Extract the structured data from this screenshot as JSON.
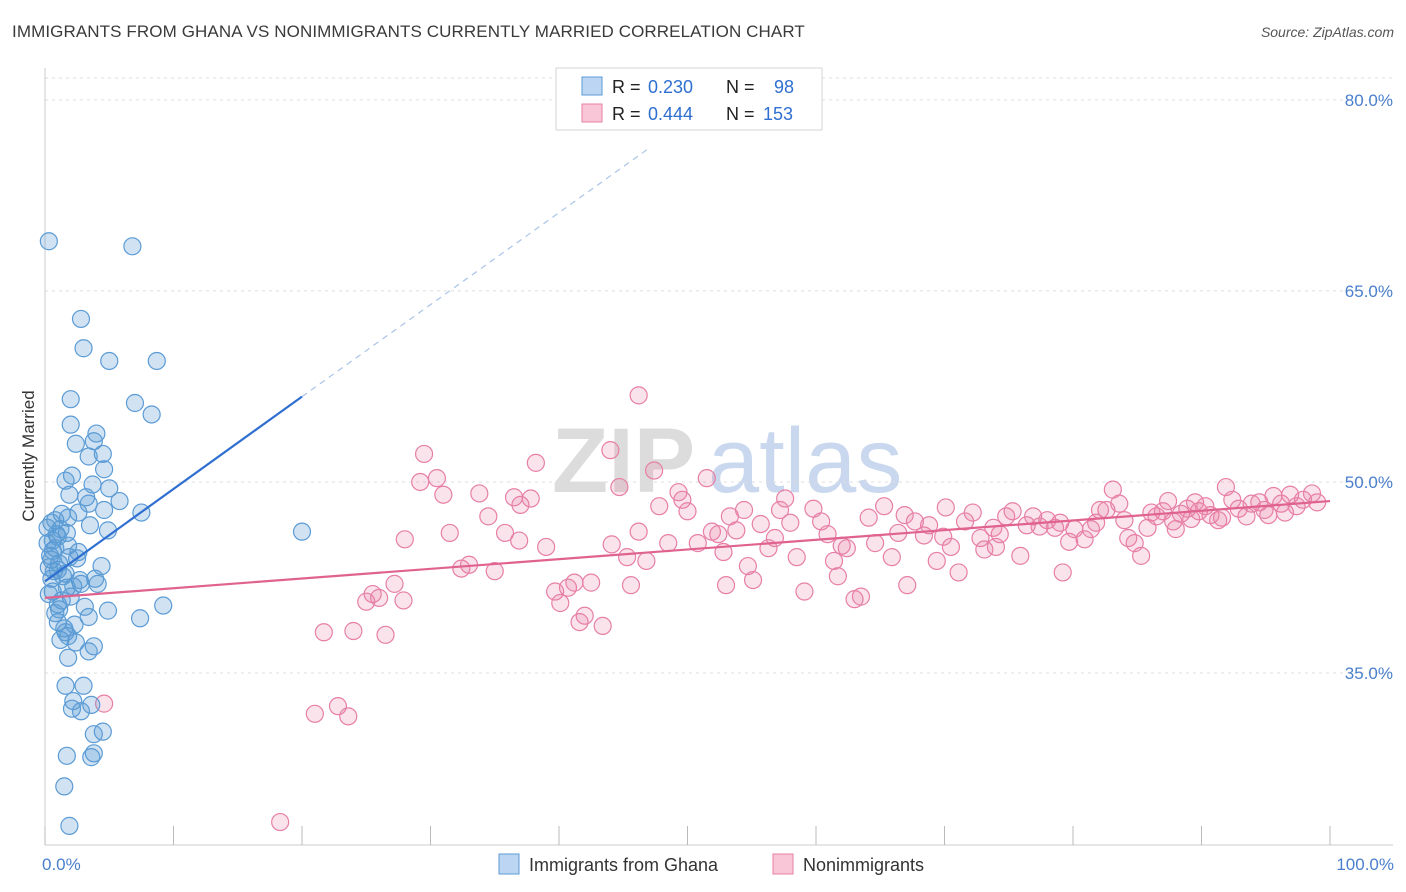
{
  "header": {
    "title": "IMMIGRANTS FROM GHANA VS NONIMMIGRANTS CURRENTLY MARRIED CORRELATION CHART",
    "source": "Source: ZipAtlas.com"
  },
  "watermark": {
    "zip": "ZIP",
    "atlas": "atlas"
  },
  "colors": {
    "blue": "#5b9bd5",
    "blue_line": "#2f6fd0",
    "pink": "#e77fa6",
    "pink_line": "#e0628e"
  },
  "legend": {
    "rows": [
      {
        "r_label": "R =",
        "r_value": "0.230",
        "n_label": "N =",
        "n_value": "98"
      },
      {
        "r_label": "R =",
        "r_value": "0.444",
        "n_label": "N =",
        "n_value": "153"
      }
    ]
  },
  "chart_data": {
    "type": "scatter",
    "title": "IMMIGRANTS FROM GHANA VS NONIMMIGRANTS CURRENTLY MARRIED CORRELATION CHART",
    "xlabel": "",
    "ylabel": "Currently Married",
    "xlim": [
      0,
      100
    ],
    "ylim": [
      21.5,
      82.5
    ],
    "x_tick_labels": [
      "0.0%",
      "100.0%"
    ],
    "y_ticks": [
      35,
      50,
      65,
      80
    ],
    "y_tick_labels": [
      "35.0%",
      "50.0%",
      "65.0%",
      "80.0%"
    ],
    "grid": true,
    "series": [
      {
        "name": "Immigrants from Ghana",
        "R": 0.23,
        "N": 98,
        "trend": {
          "x0": 0,
          "y0": 42.2,
          "x1": 20,
          "y1": 56.7,
          "dash_to_x": 47,
          "dash_to_y": 76.2
        },
        "points": [
          [
            0.3,
            68.9
          ],
          [
            6.8,
            68.5
          ],
          [
            2.8,
            62.8
          ],
          [
            3.0,
            60.5
          ],
          [
            5.0,
            59.5
          ],
          [
            8.7,
            59.5
          ],
          [
            2.0,
            56.5
          ],
          [
            7.0,
            56.2
          ],
          [
            8.3,
            55.3
          ],
          [
            2.0,
            54.5
          ],
          [
            4.0,
            53.8
          ],
          [
            3.8,
            53.2
          ],
          [
            2.4,
            53.0
          ],
          [
            4.5,
            52.2
          ],
          [
            3.4,
            52.0
          ],
          [
            4.6,
            51.0
          ],
          [
            2.1,
            50.5
          ],
          [
            1.6,
            50.1
          ],
          [
            3.7,
            49.8
          ],
          [
            5.0,
            49.5
          ],
          [
            1.9,
            49.0
          ],
          [
            3.2,
            48.8
          ],
          [
            5.8,
            48.5
          ],
          [
            3.4,
            48.3
          ],
          [
            4.6,
            47.8
          ],
          [
            2.6,
            47.6
          ],
          [
            7.5,
            47.6
          ],
          [
            1.3,
            47.5
          ],
          [
            1.8,
            47.2
          ],
          [
            0.8,
            47.0
          ],
          [
            0.5,
            46.8
          ],
          [
            3.5,
            46.6
          ],
          [
            4.9,
            46.2
          ],
          [
            1.7,
            46.0
          ],
          [
            1.0,
            45.7
          ],
          [
            0.6,
            45.4
          ],
          [
            0.2,
            45.2
          ],
          [
            0.8,
            44.8
          ],
          [
            2.6,
            44.5
          ],
          [
            1.9,
            44.1
          ],
          [
            0.5,
            43.9
          ],
          [
            1.1,
            43.6
          ],
          [
            4.4,
            43.4
          ],
          [
            0.3,
            43.3
          ],
          [
            1.0,
            43.1
          ],
          [
            1.6,
            42.8
          ],
          [
            0.5,
            42.4
          ],
          [
            2.7,
            42.3
          ],
          [
            2.8,
            42.0
          ],
          [
            4.1,
            42.0
          ],
          [
            1.7,
            41.7
          ],
          [
            0.6,
            41.4
          ],
          [
            2.0,
            41.0
          ],
          [
            1.3,
            40.7
          ],
          [
            1.0,
            40.4
          ],
          [
            9.2,
            40.3
          ],
          [
            4.9,
            39.9
          ],
          [
            0.8,
            39.7
          ],
          [
            3.4,
            39.4
          ],
          [
            7.4,
            39.3
          ],
          [
            1.5,
            38.5
          ],
          [
            1.6,
            38.2
          ],
          [
            1.8,
            37.9
          ],
          [
            1.2,
            37.6
          ],
          [
            2.4,
            37.4
          ],
          [
            3.8,
            37.1
          ],
          [
            3.4,
            36.7
          ],
          [
            1.8,
            36.2
          ],
          [
            1.6,
            34.0
          ],
          [
            3.0,
            34.0
          ],
          [
            2.2,
            32.8
          ],
          [
            3.6,
            32.5
          ],
          [
            2.1,
            32.2
          ],
          [
            2.8,
            32.0
          ],
          [
            4.5,
            30.4
          ],
          [
            3.8,
            30.2
          ],
          [
            3.8,
            28.7
          ],
          [
            3.6,
            28.4
          ],
          [
            1.7,
            28.5
          ],
          [
            20.0,
            46.1
          ],
          [
            1.5,
            26.1
          ],
          [
            1.9,
            23.0
          ],
          [
            0.4,
            44.2
          ],
          [
            0.9,
            45.9
          ],
          [
            1.2,
            46.3
          ],
          [
            0.7,
            43.0
          ],
          [
            1.4,
            42.6
          ],
          [
            2.2,
            41.8
          ],
          [
            0.3,
            41.2
          ],
          [
            3.1,
            40.2
          ],
          [
            1.0,
            39.0
          ],
          [
            2.3,
            38.8
          ],
          [
            0.6,
            44.6
          ],
          [
            1.8,
            45.0
          ],
          [
            0.2,
            46.4
          ],
          [
            2.5,
            44.0
          ],
          [
            1.1,
            40.0
          ],
          [
            3.9,
            42.4
          ]
        ]
      },
      {
        "name": "Nonimmigrants",
        "R": 0.444,
        "N": 153,
        "trend": {
          "x0": 0,
          "y0": 40.9,
          "x1": 100,
          "y1": 48.5
        },
        "points": [
          [
            46.2,
            56.8
          ],
          [
            18.3,
            23.3
          ],
          [
            21.0,
            31.8
          ],
          [
            22.8,
            32.4
          ],
          [
            23.6,
            31.6
          ],
          [
            4.6,
            32.6
          ],
          [
            21.7,
            38.2
          ],
          [
            24.0,
            38.3
          ],
          [
            26.5,
            38.0
          ],
          [
            25.0,
            40.6
          ],
          [
            25.5,
            41.2
          ],
          [
            26.0,
            40.9
          ],
          [
            27.2,
            42.0
          ],
          [
            28.0,
            45.5
          ],
          [
            29.5,
            52.2
          ],
          [
            29.2,
            50.0
          ],
          [
            31.0,
            49.0
          ],
          [
            31.5,
            46.0
          ],
          [
            32.4,
            43.2
          ],
          [
            33.8,
            49.1
          ],
          [
            34.5,
            47.3
          ],
          [
            35.0,
            43.0
          ],
          [
            35.8,
            46.0
          ],
          [
            36.5,
            48.8
          ],
          [
            36.9,
            45.4
          ],
          [
            37.8,
            48.7
          ],
          [
            38.2,
            51.5
          ],
          [
            39.0,
            44.9
          ],
          [
            39.7,
            41.4
          ],
          [
            40.1,
            40.5
          ],
          [
            40.7,
            41.7
          ],
          [
            41.2,
            42.1
          ],
          [
            41.6,
            39.0
          ],
          [
            42.0,
            39.5
          ],
          [
            42.5,
            42.1
          ],
          [
            43.4,
            38.7
          ],
          [
            44.0,
            52.5
          ],
          [
            44.7,
            49.6
          ],
          [
            44.1,
            45.1
          ],
          [
            45.3,
            44.1
          ],
          [
            45.6,
            41.9
          ],
          [
            46.2,
            46.1
          ],
          [
            47.4,
            50.9
          ],
          [
            47.8,
            48.1
          ],
          [
            48.5,
            45.2
          ],
          [
            49.3,
            49.2
          ],
          [
            49.6,
            48.6
          ],
          [
            50.0,
            47.7
          ],
          [
            50.8,
            45.2
          ],
          [
            51.5,
            50.3
          ],
          [
            51.9,
            46.1
          ],
          [
            52.4,
            45.9
          ],
          [
            53.3,
            47.3
          ],
          [
            53.8,
            46.2
          ],
          [
            54.4,
            47.8
          ],
          [
            54.7,
            43.4
          ],
          [
            55.1,
            42.3
          ],
          [
            55.7,
            46.7
          ],
          [
            56.3,
            44.8
          ],
          [
            56.8,
            45.6
          ],
          [
            57.2,
            47.8
          ],
          [
            58.0,
            46.8
          ],
          [
            58.5,
            44.1
          ],
          [
            59.1,
            41.4
          ],
          [
            59.8,
            47.9
          ],
          [
            60.4,
            46.9
          ],
          [
            60.9,
            45.9
          ],
          [
            61.4,
            43.8
          ],
          [
            61.7,
            42.6
          ],
          [
            62.4,
            44.8
          ],
          [
            63.0,
            40.8
          ],
          [
            63.5,
            41.0
          ],
          [
            64.1,
            47.2
          ],
          [
            64.6,
            45.2
          ],
          [
            65.3,
            48.1
          ],
          [
            65.9,
            44.1
          ],
          [
            66.4,
            46.0
          ],
          [
            67.1,
            41.9
          ],
          [
            67.7,
            46.9
          ],
          [
            68.4,
            45.8
          ],
          [
            68.8,
            46.6
          ],
          [
            69.4,
            43.8
          ],
          [
            69.9,
            45.7
          ],
          [
            70.5,
            44.9
          ],
          [
            71.1,
            42.9
          ],
          [
            71.6,
            46.9
          ],
          [
            72.2,
            47.6
          ],
          [
            72.8,
            45.6
          ],
          [
            73.1,
            44.7
          ],
          [
            73.8,
            46.4
          ],
          [
            74.3,
            45.9
          ],
          [
            74.8,
            47.3
          ],
          [
            75.3,
            47.7
          ],
          [
            75.9,
            44.2
          ],
          [
            76.4,
            46.6
          ],
          [
            76.9,
            47.3
          ],
          [
            77.4,
            46.5
          ],
          [
            78.0,
            47.0
          ],
          [
            78.6,
            46.4
          ],
          [
            79.2,
            42.9
          ],
          [
            79.7,
            45.3
          ],
          [
            80.1,
            46.3
          ],
          [
            80.9,
            45.5
          ],
          [
            81.4,
            46.3
          ],
          [
            81.8,
            46.8
          ],
          [
            82.6,
            47.8
          ],
          [
            83.1,
            49.4
          ],
          [
            83.6,
            48.3
          ],
          [
            84.3,
            45.6
          ],
          [
            84.8,
            45.2
          ],
          [
            85.3,
            44.2
          ],
          [
            85.8,
            46.4
          ],
          [
            86.5,
            47.3
          ],
          [
            87.0,
            47.7
          ],
          [
            87.4,
            48.5
          ],
          [
            88.0,
            46.3
          ],
          [
            88.4,
            47.5
          ],
          [
            88.9,
            47.9
          ],
          [
            89.2,
            47.1
          ],
          [
            89.8,
            47.7
          ],
          [
            90.3,
            48.1
          ],
          [
            90.7,
            47.4
          ],
          [
            91.3,
            47.0
          ],
          [
            91.9,
            49.6
          ],
          [
            92.4,
            48.6
          ],
          [
            92.9,
            47.9
          ],
          [
            93.5,
            47.3
          ],
          [
            93.9,
            48.3
          ],
          [
            94.5,
            48.4
          ],
          [
            94.9,
            47.8
          ],
          [
            95.6,
            48.9
          ],
          [
            96.2,
            48.3
          ],
          [
            96.9,
            49.0
          ],
          [
            97.4,
            48.1
          ],
          [
            97.9,
            48.6
          ],
          [
            98.6,
            49.1
          ],
          [
            96.5,
            47.6
          ],
          [
            89.5,
            48.4
          ],
          [
            86.1,
            47.6
          ],
          [
            82.1,
            47.8
          ],
          [
            30.5,
            50.3
          ],
          [
            27.9,
            40.7
          ],
          [
            33.0,
            43.5
          ],
          [
            37.0,
            48.2
          ],
          [
            46.8,
            43.8
          ],
          [
            52.8,
            44.5
          ],
          [
            57.6,
            48.7
          ],
          [
            62.0,
            45.0
          ],
          [
            66.9,
            47.4
          ],
          [
            70.1,
            48.0
          ],
          [
            74.0,
            44.9
          ],
          [
            79.0,
            46.8
          ],
          [
            84.0,
            47.0
          ],
          [
            87.8,
            46.9
          ],
          [
            91.6,
            47.2
          ],
          [
            95.2,
            47.4
          ],
          [
            99.0,
            48.4
          ],
          [
            53.0,
            41.9
          ]
        ]
      }
    ]
  },
  "bottom_legend": {
    "items": [
      {
        "label": "Immigrants from Ghana"
      },
      {
        "label": "Nonimmigrants"
      }
    ]
  }
}
